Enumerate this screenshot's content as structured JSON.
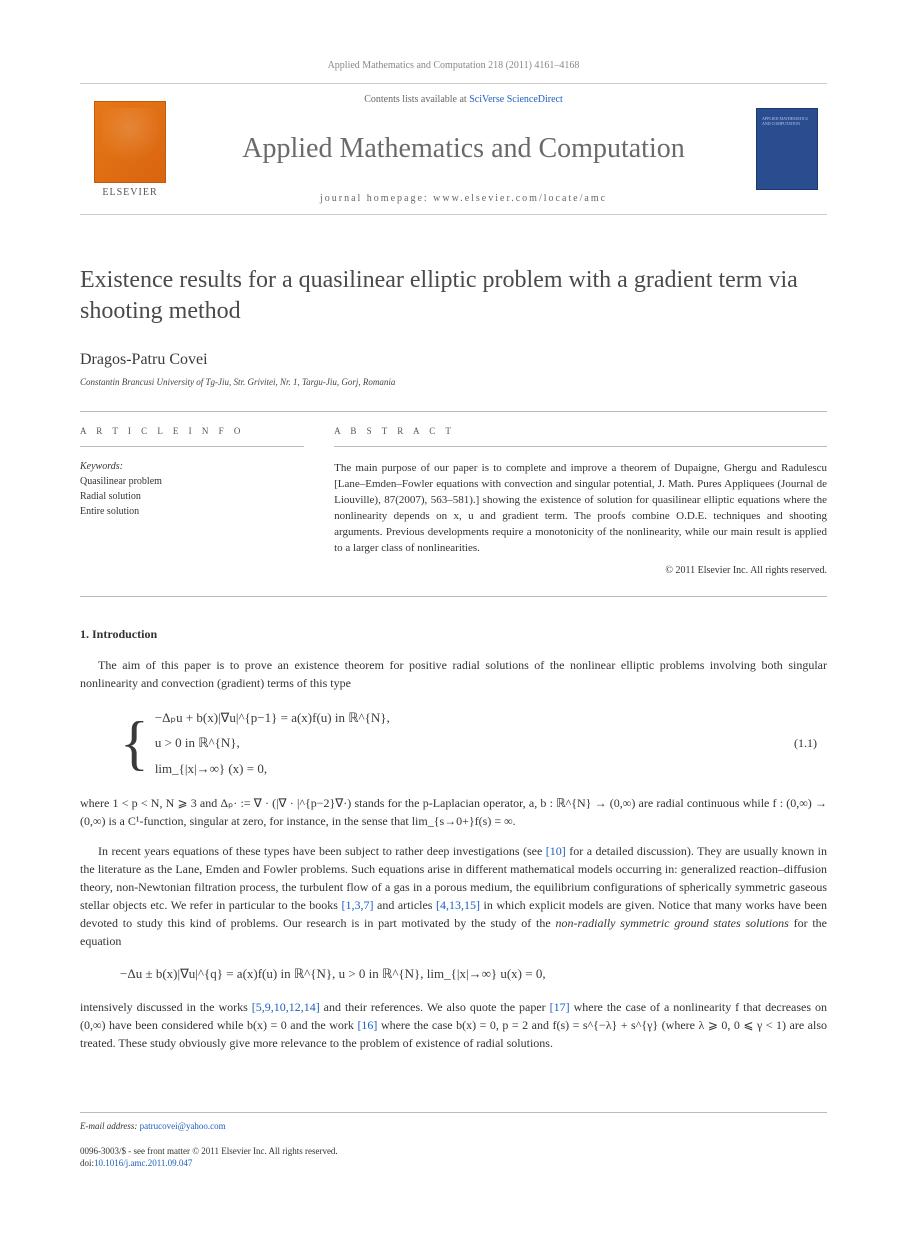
{
  "header": {
    "citation": "Applied Mathematics and Computation 218 (2011) 4161–4168"
  },
  "masthead": {
    "contents_prefix": "Contents lists available at ",
    "contents_link": "SciVerse ScienceDirect",
    "journal": "Applied Mathematics and Computation",
    "homepage_prefix": "journal homepage: ",
    "homepage_url": "www.elsevier.com/locate/amc",
    "publisher": "ELSEVIER",
    "cover_text": "APPLIED MATHEMATICS AND COMPUTATION"
  },
  "article": {
    "title": "Existence results for a quasilinear elliptic problem with a gradient term via shooting method",
    "author": "Dragos-Patru Covei",
    "affiliation": "Constantin Brancusi University of Tg-Jiu, Str. Grivitei, Nr. 1, Targu-Jiu, Gorj, Romania"
  },
  "info": {
    "head": "A R T I C L E   I N F O",
    "keywords_label": "Keywords:",
    "keywords": [
      "Quasilinear problem",
      "Radial solution",
      "Entire solution"
    ]
  },
  "abstract": {
    "head": "A B S T R A C T",
    "text": "The main purpose of our paper is to complete and improve a theorem of Dupaigne, Ghergu and Radulescu [Lane–Emden–Fowler equations with convection and singular potential, J. Math. Pures Appliquees (Journal de Liouville), 87(2007), 563–581).] showing the existence of solution for quasilinear elliptic equations where the nonlinearity depends on x, u and gradient term. The proofs combine O.D.E. techniques and shooting arguments. Previous developments require a monotonicity of the nonlinearity, while our main result is applied to a larger class of nonlinearities.",
    "copyright": "© 2011 Elsevier Inc. All rights reserved."
  },
  "section1": {
    "head": "1. Introduction",
    "para1": "The aim of this paper is to prove an existence theorem for positive radial solutions of the nonlinear elliptic problems involving both singular nonlinearity and convection (gradient) terms of this type",
    "eq1_l1": "−Δₚu + b(x)|∇u|^{p−1} = a(x)f(u)   in ℝ^{N},",
    "eq1_l2": "u > 0   in ℝ^{N},",
    "eq1_l3": "lim_{|x|→∞} (x) = 0,",
    "eq1_num": "(1.1)",
    "para2_pre": "where 1 < p < N, N ⩾ 3 and Δₚ· := ∇ · (|∇ · |^{p−2}∇·) stands for the p-Laplacian operator, a, b : ℝ^{N} → (0,∞) are radial continuous while f : (0,∞) → (0,∞) is a C¹-function, singular at zero, for instance, in the sense that lim_{s→0+}f(s) = ∞.",
    "para3_a": "In recent years equations of these types have been subject to rather deep investigations (see ",
    "para3_ref1": "[10]",
    "para3_b": " for a detailed discussion). They are usually known in the literature as the Lane, Emden and Fowler problems. Such equations arise in different mathematical models occurring in: generalized reaction–diffusion theory, non-Newtonian filtration process, the turbulent flow of a gas in a porous medium, the equilibrium configurations of spherically symmetric gaseous stellar objects etc. We refer in particular to the books ",
    "para3_ref2": "[1,3,7]",
    "para3_c": " and articles ",
    "para3_ref3": "[4,13,15]",
    "para3_d": " in which explicit models are given. Notice that many works have been devoted to study this kind of problems. Our research is in part motivated by the study of the ",
    "para3_em": "non-radially symmetric ground states solutions",
    "para3_e": " for the equation",
    "eq2": "−Δu ± b(x)|∇u|^{q} = a(x)f(u)   in ℝ^{N}, u > 0   in ℝ^{N},   lim_{|x|→∞} u(x) = 0,",
    "para4_a": "intensively discussed in the works ",
    "para4_ref1": "[5,9,10,12,14]",
    "para4_b": " and their references. We also quote the paper ",
    "para4_ref2": "[17]",
    "para4_c": " where the case of a nonlinearity f that decreases on (0,∞) have been considered while b(x) = 0 and the work ",
    "para4_ref3": "[16]",
    "para4_d": " where the case b(x) = 0, p = 2 and f(s) = s^{−λ} + s^{γ} (where λ ⩾ 0, 0 ⩽ γ < 1) are also treated. These study obviously give more relevance to the problem of existence of radial solutions."
  },
  "footer": {
    "email_label": "E-mail address: ",
    "email": "patrucovei@yahoo.com",
    "issn_line": "0096-3003/$ - see front matter © 2011 Elsevier Inc. All rights reserved.",
    "doi_prefix": "doi:",
    "doi": "10.1016/j.amc.2011.09.047"
  },
  "colors": {
    "link": "#1d5fbf",
    "elsevier_orange": "#e67817",
    "cover_blue": "#2a4d8f"
  }
}
